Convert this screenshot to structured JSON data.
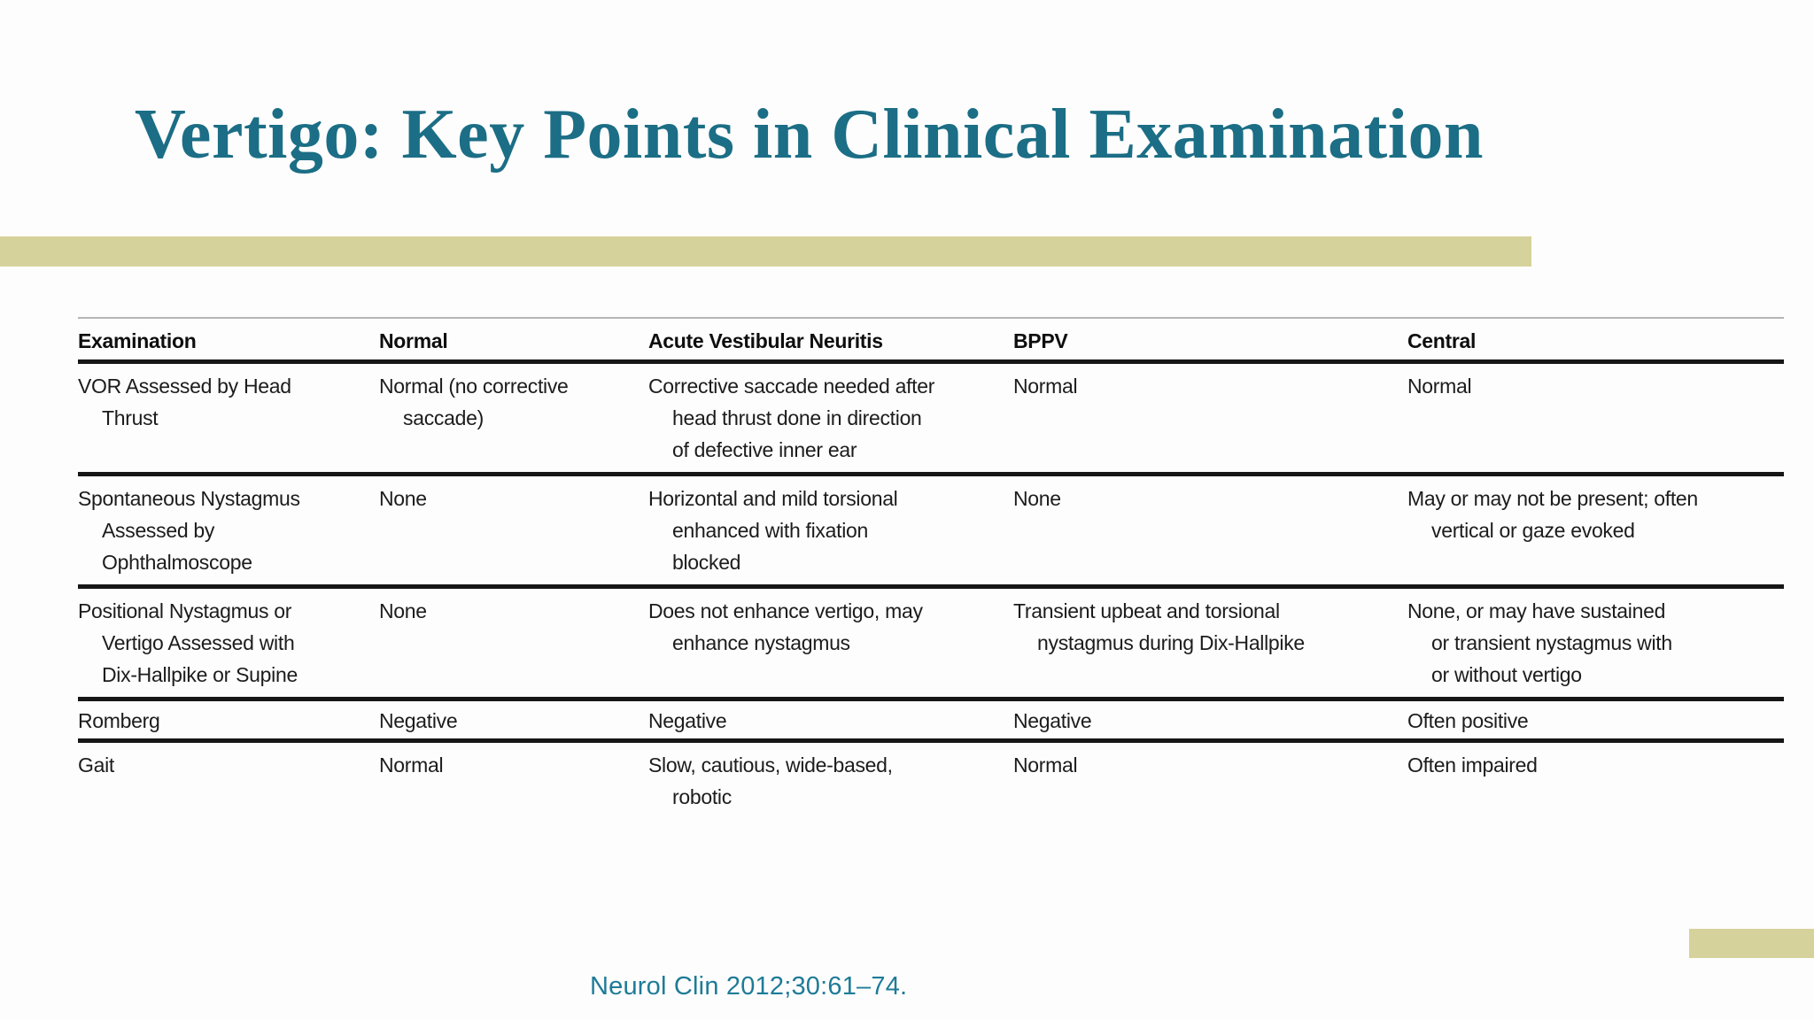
{
  "slide": {
    "title": "Vertigo: Key Points in Clinical Examination",
    "citation": "Neurol Clin 2012;30:61–74.",
    "colors": {
      "title_teal": "#1b6e85",
      "citation_teal": "#1e7b97",
      "accent_tan": "#d6d29b",
      "table_rule_black": "#161616",
      "table_rule_gray": "#b5b5b5"
    }
  },
  "table": {
    "headers": [
      "Examination",
      "Normal",
      "Acute Vestibular Neuritis",
      "BPPV",
      "Central"
    ],
    "rows": [
      [
        "VOR Assessed by Head\nThrust",
        "Normal (no corrective\nsaccade)",
        "Corrective saccade needed after\nhead thrust done in direction\nof defective inner ear",
        "Normal",
        "Normal"
      ],
      [
        "Spontaneous Nystagmus\nAssessed by\nOphthalmoscope",
        "None",
        "Horizontal and mild torsional\nenhanced with fixation\nblocked",
        "None",
        "May or may not be present; often\nvertical or gaze evoked"
      ],
      [
        "Positional Nystagmus or\nVertigo Assessed with\nDix-Hallpike or Supine",
        "None",
        "Does not enhance vertigo, may\nenhance nystagmus",
        "Transient upbeat and torsional\nnystagmus during Dix-Hallpike",
        "None, or may have sustained\nor transient nystagmus with\nor without vertigo"
      ],
      [
        "Romberg",
        "Negative",
        "Negative",
        "Negative",
        "Often positive"
      ],
      [
        "Gait",
        "Normal",
        "Slow, cautious, wide-based,\nrobotic",
        "Normal",
        "Often impaired"
      ]
    ]
  }
}
